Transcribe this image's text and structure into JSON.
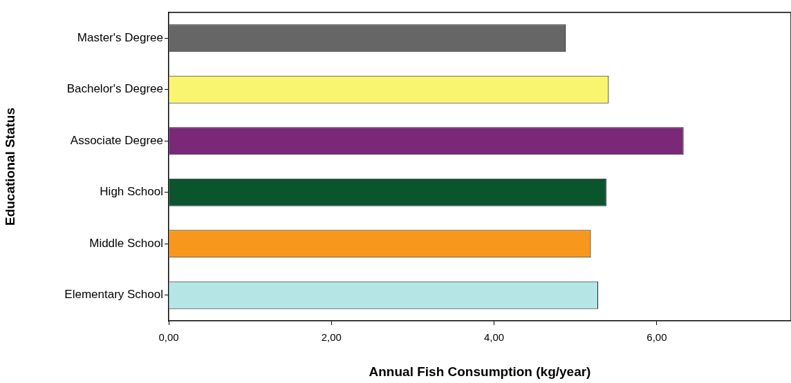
{
  "chart_data": {
    "type": "bar",
    "orientation": "horizontal",
    "xlabel": "Annual Fish Consumption (kg/year)",
    "ylabel": "Educational Status",
    "categories": [
      "Master's Degree",
      "Bachelor's Degree",
      "Associate Degree",
      "High School",
      "Middle School",
      "Elementary School"
    ],
    "values": [
      4.88,
      5.41,
      6.33,
      5.38,
      5.19,
      5.28
    ],
    "colors": [
      "#666666",
      "#faf56f",
      "#7a2877",
      "#0a542e",
      "#f7981d",
      "#b4e6e6"
    ],
    "xlim": [
      0,
      7.65
    ],
    "xticks": [
      {
        "value": 0,
        "label": "0,00"
      },
      {
        "value": 2,
        "label": "2,00"
      },
      {
        "value": 4,
        "label": "4,00"
      },
      {
        "value": 6,
        "label": "6,00"
      }
    ],
    "grid": false,
    "legend": false
  }
}
